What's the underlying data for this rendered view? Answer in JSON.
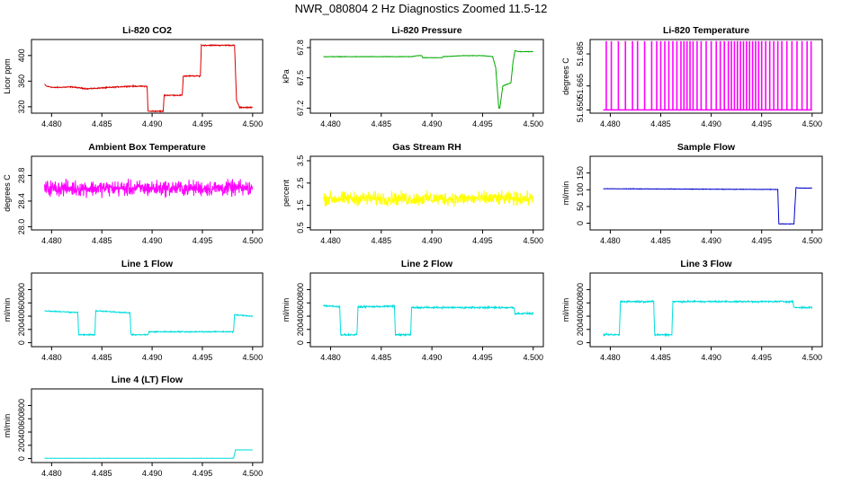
{
  "page_title": "NWR_080804  2 Hz Diagnostics Zoomed 11.5-12",
  "chart_data": [
    {
      "type": "line",
      "title": "Li-820 CO2",
      "ylabel": "Licor ppm",
      "xlim": [
        4.478,
        4.501
      ],
      "ylim": [
        310,
        425
      ],
      "xticks": [
        4.48,
        4.485,
        4.49,
        4.495,
        4.5
      ],
      "xtick_labels": [
        "4.480",
        "4.485",
        "4.490",
        "4.495",
        "4.500"
      ],
      "yticks": [
        320,
        360,
        400
      ],
      "ytick_labels": [
        "320",
        "360",
        "400"
      ],
      "color": "#dd0000",
      "noise": 1.2,
      "series": [
        {
          "x": [
            4.4793,
            4.4795,
            4.4802,
            4.482,
            4.4836,
            4.4856,
            4.4876,
            4.488,
            4.4895,
            4.4896,
            4.4911,
            4.4912,
            4.493,
            4.4931,
            4.4948,
            4.4949,
            4.496,
            4.4982,
            4.4984,
            4.4987,
            4.5
          ],
          "y": [
            355,
            352,
            350,
            351,
            348,
            350,
            352,
            352,
            352,
            313,
            313,
            338,
            338,
            368,
            368,
            416,
            416,
            416,
            330,
            319,
            319
          ]
        }
      ]
    },
    {
      "type": "line",
      "title": "Li-820 Pressure",
      "ylabel": "kPa",
      "xlim": [
        4.478,
        4.501
      ],
      "ylim": [
        67.15,
        67.88
      ],
      "xticks": [
        4.48,
        4.485,
        4.49,
        4.495,
        4.5
      ],
      "xtick_labels": [
        "4.480",
        "4.485",
        "4.490",
        "4.495",
        "4.500"
      ],
      "yticks": [
        67.2,
        67.5,
        67.8
      ],
      "ytick_labels": [
        "67.2",
        "67.5",
        "67.8"
      ],
      "color": "#00aa00",
      "noise": 0.003,
      "series": [
        {
          "x": [
            4.4793,
            4.488,
            4.4885,
            4.489,
            4.4891,
            4.491,
            4.4911,
            4.493,
            4.495,
            4.496,
            4.4963,
            4.4966,
            4.4967,
            4.497,
            4.4975,
            4.4978,
            4.498,
            4.4982,
            4.4986,
            4.5
          ],
          "y": [
            67.71,
            67.71,
            67.72,
            67.72,
            67.7,
            67.7,
            67.71,
            67.72,
            67.72,
            67.71,
            67.6,
            67.2,
            67.2,
            67.42,
            67.44,
            67.45,
            67.65,
            67.77,
            67.76,
            67.76
          ]
        }
      ]
    },
    {
      "type": "spikes",
      "title": "Li-820 Temperature",
      "ylabel": "degrees C",
      "xlim": [
        4.478,
        4.501
      ],
      "ylim": [
        51.648,
        51.694
      ],
      "xticks": [
        4.48,
        4.485,
        4.49,
        4.495,
        4.5
      ],
      "xtick_labels": [
        "4.480",
        "4.485",
        "4.490",
        "4.495",
        "4.500"
      ],
      "yticks": [
        51.65,
        51.665,
        51.685
      ],
      "ytick_labels": [
        "51.650",
        "51.665",
        "51.685"
      ],
      "color": "#ff00ff",
      "baseline": 51.65,
      "spike_top": 51.693,
      "series": [
        {
          "x": [
            4.4796,
            4.4801,
            4.4808,
            4.4815,
            4.4822,
            4.4827,
            4.4834,
            4.4841,
            4.4846,
            4.485,
            4.4854,
            4.4858,
            4.4862,
            4.4866,
            4.487,
            4.4873,
            4.4876,
            4.4879,
            4.4882,
            4.4886,
            4.489,
            4.4895,
            4.49,
            4.4905,
            4.4909,
            4.4913,
            4.4917,
            4.492,
            4.4923,
            4.4926,
            4.4929,
            4.4932,
            4.4935,
            4.4938,
            4.4941,
            4.4944,
            4.4947,
            4.495,
            4.4954,
            4.4958,
            4.4962,
            4.4966,
            4.497,
            4.4975,
            4.498,
            4.4985,
            4.499,
            4.4995,
            4.4999
          ]
        }
      ]
    },
    {
      "type": "line",
      "title": "Ambient Box Temperature",
      "ylabel": "degrees C",
      "xlim": [
        4.478,
        4.501
      ],
      "ylim": [
        27.95,
        29.1
      ],
      "xticks": [
        4.48,
        4.485,
        4.49,
        4.495,
        4.5
      ],
      "xtick_labels": [
        "4.480",
        "4.485",
        "4.490",
        "4.495",
        "4.500"
      ],
      "yticks": [
        28.0,
        28.4,
        28.8
      ],
      "ytick_labels": [
        "28.0",
        "28.4",
        "28.8"
      ],
      "color": "#ff00ff",
      "noise": 0.18,
      "series": [
        {
          "x": [
            4.4793,
            4.5
          ],
          "y": [
            28.6,
            28.6
          ]
        }
      ]
    },
    {
      "type": "line",
      "title": "Gas Stream RH",
      "ylabel": "percent",
      "xlim": [
        4.478,
        4.501
      ],
      "ylim": [
        0.4,
        3.7
      ],
      "xticks": [
        4.48,
        4.485,
        4.49,
        4.495,
        4.5
      ],
      "xtick_labels": [
        "4.480",
        "4.485",
        "4.490",
        "4.495",
        "4.500"
      ],
      "yticks": [
        0.5,
        1.5,
        2.5,
        3.5
      ],
      "ytick_labels": [
        "0.5",
        "1.5",
        "2.5",
        "3.5"
      ],
      "color": "#ffff00",
      "noise": 0.45,
      "series": [
        {
          "x": [
            4.4793,
            4.5
          ],
          "y": [
            1.8,
            1.8
          ]
        }
      ]
    },
    {
      "type": "line",
      "title": "Sample Flow",
      "ylabel": "ml/min",
      "xlim": [
        4.478,
        4.501
      ],
      "ylim": [
        -20,
        200
      ],
      "xticks": [
        4.48,
        4.485,
        4.49,
        4.495,
        4.5
      ],
      "xtick_labels": [
        "4.480",
        "4.485",
        "4.490",
        "4.495",
        "4.500"
      ],
      "yticks": [
        0,
        50,
        100,
        150
      ],
      "ytick_labels": [
        "0",
        "50",
        "100",
        "150"
      ],
      "color": "#0000cc",
      "noise": 1.0,
      "series": [
        {
          "x": [
            4.4793,
            4.496,
            4.4966,
            4.4967,
            4.4982,
            4.4984,
            4.4986,
            4.5
          ],
          "y": [
            103,
            101,
            101,
            -2,
            -2,
            107,
            105,
            105
          ]
        }
      ]
    },
    {
      "type": "line",
      "title": "Line 1 Flow",
      "ylabel": "ml/min",
      "xlim": [
        4.478,
        4.501
      ],
      "ylim": [
        -60,
        1050
      ],
      "xticks": [
        4.48,
        4.485,
        4.49,
        4.495,
        4.5
      ],
      "xtick_labels": [
        "4.480",
        "4.485",
        "4.490",
        "4.495",
        "4.500"
      ],
      "yticks": [
        0,
        200,
        400,
        600,
        800
      ],
      "ytick_labels": [
        "0",
        "200",
        "400",
        "600",
        "800"
      ],
      "color": "#00dddd",
      "noise": 12,
      "series": [
        {
          "x": [
            4.4793,
            4.4826,
            4.4827,
            4.4843,
            4.4844,
            4.4878,
            4.4879,
            4.4896,
            4.4897,
            4.4981,
            4.4982,
            4.5
          ],
          "y": [
            480,
            455,
            120,
            120,
            480,
            450,
            120,
            120,
            165,
            165,
            420,
            400
          ]
        }
      ]
    },
    {
      "type": "line",
      "title": "Line 2 Flow",
      "ylabel": "ml/min",
      "xlim": [
        4.478,
        4.501
      ],
      "ylim": [
        -60,
        1050
      ],
      "xticks": [
        4.48,
        4.485,
        4.49,
        4.495,
        4.5
      ],
      "xtick_labels": [
        "4.480",
        "4.485",
        "4.490",
        "4.495",
        "4.500"
      ],
      "yticks": [
        0,
        200,
        400,
        600,
        800
      ],
      "ytick_labels": [
        "0",
        "200",
        "400",
        "600",
        "800"
      ],
      "color": "#00dddd",
      "noise": 18,
      "series": [
        {
          "x": [
            4.4793,
            4.4805,
            4.4809,
            4.481,
            4.4826,
            4.4827,
            4.4863,
            4.4864,
            4.4879,
            4.488,
            4.4981,
            4.4982,
            4.5
          ],
          "y": [
            560,
            545,
            540,
            120,
            120,
            540,
            550,
            120,
            120,
            530,
            530,
            440,
            440
          ]
        }
      ]
    },
    {
      "type": "line",
      "title": "Line 3 Flow",
      "ylabel": "ml/min",
      "xlim": [
        4.478,
        4.501
      ],
      "ylim": [
        -60,
        1050
      ],
      "xticks": [
        4.48,
        4.485,
        4.49,
        4.495,
        4.5
      ],
      "xtick_labels": [
        "4.480",
        "4.485",
        "4.490",
        "4.495",
        "4.500"
      ],
      "yticks": [
        0,
        200,
        400,
        600,
        800
      ],
      "ytick_labels": [
        "0",
        "200",
        "400",
        "600",
        "800"
      ],
      "color": "#00dddd",
      "noise": 18,
      "series": [
        {
          "x": [
            4.4793,
            4.4809,
            4.481,
            4.4843,
            4.4844,
            4.4861,
            4.4862,
            4.4981,
            4.4982,
            4.5
          ],
          "y": [
            120,
            120,
            620,
            620,
            120,
            120,
            620,
            620,
            530,
            530
          ]
        }
      ]
    },
    {
      "type": "line",
      "title": "Line 4 (LT) Flow",
      "ylabel": "ml/min",
      "xlim": [
        4.478,
        4.501
      ],
      "ylim": [
        -60,
        1050
      ],
      "xticks": [
        4.48,
        4.485,
        4.49,
        4.495,
        4.5
      ],
      "xtick_labels": [
        "4.480",
        "4.485",
        "4.490",
        "4.495",
        "4.500"
      ],
      "yticks": [
        0,
        200,
        400,
        600,
        800
      ],
      "ytick_labels": [
        "0",
        "200",
        "400",
        "600",
        "800"
      ],
      "color": "#00dddd",
      "noise": 2,
      "series": [
        {
          "x": [
            4.4793,
            4.4981,
            4.4983,
            4.5
          ],
          "y": [
            5,
            5,
            130,
            130
          ]
        }
      ]
    }
  ]
}
